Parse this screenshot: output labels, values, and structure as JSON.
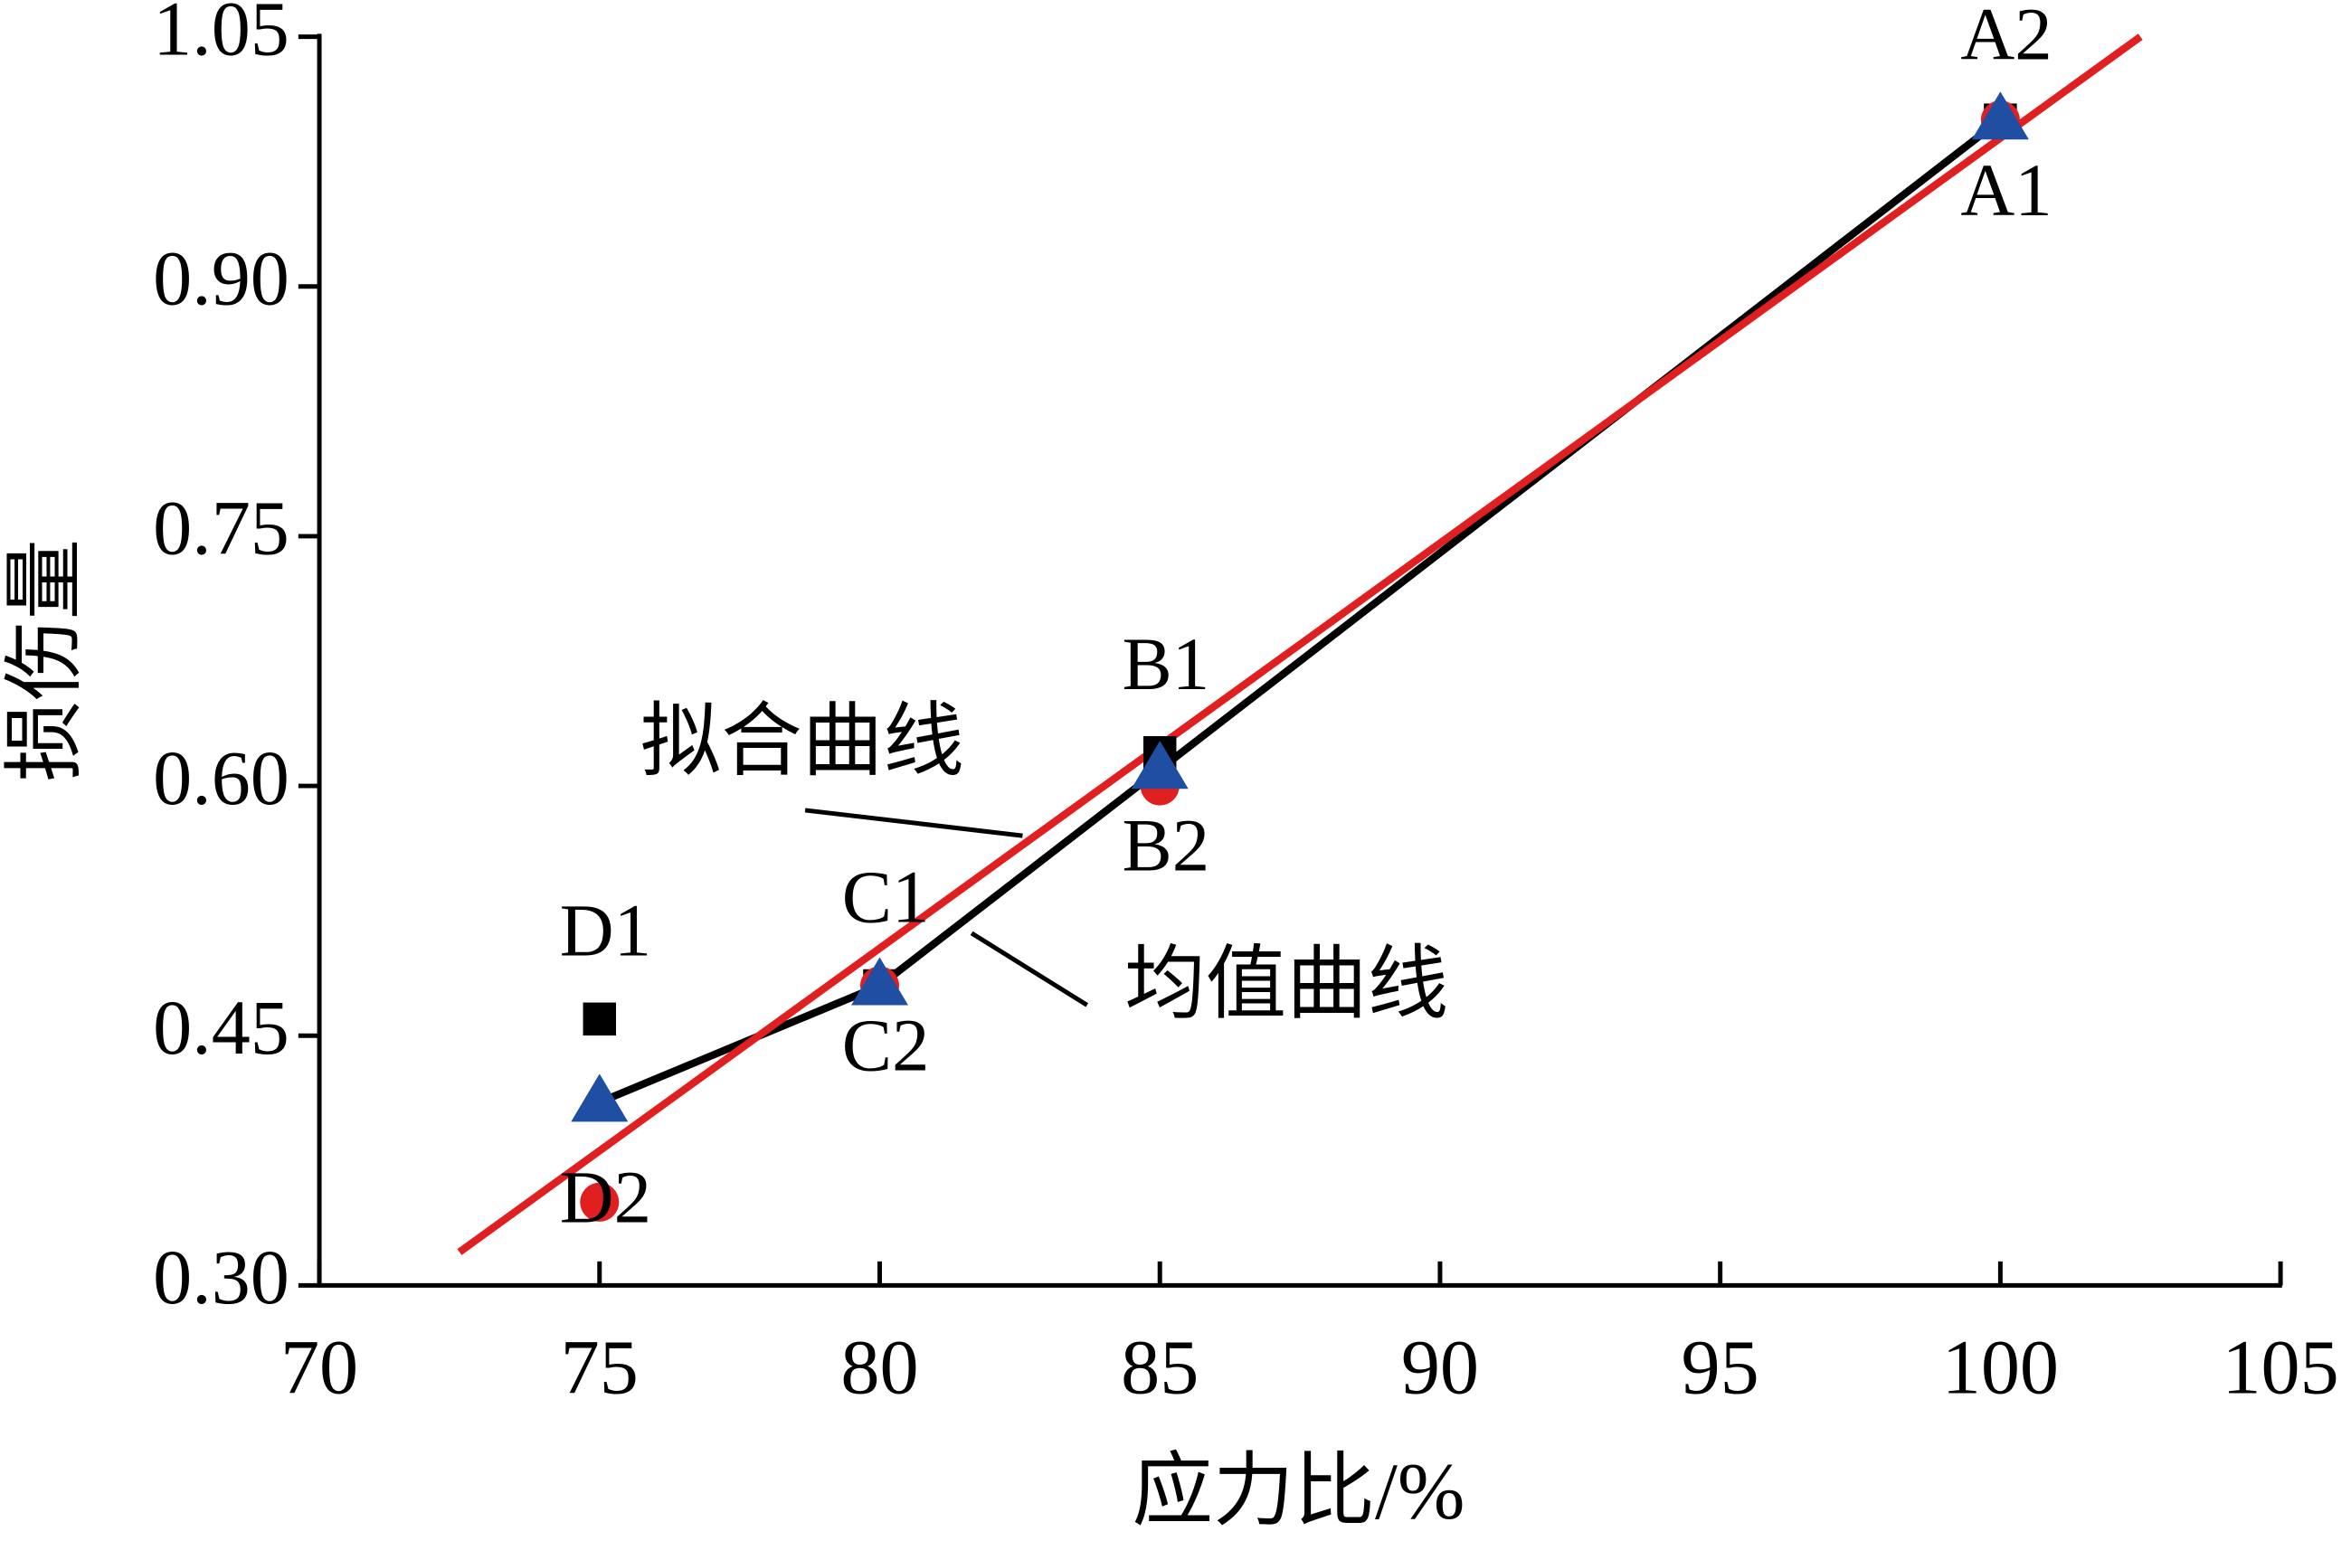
{
  "chart_data": {
    "type": "scatter",
    "x_label": "应力比/%",
    "y_label": "损伤量",
    "xlim": [
      70,
      105
    ],
    "xticks": [
      70,
      75,
      80,
      85,
      90,
      95,
      100,
      105
    ],
    "ylim": [
      0.3,
      1.05
    ],
    "yticks": [
      {
        "value": 0.3,
        "label": "0.30"
      },
      0.45,
      {
        "value": 0.6,
        "label": "0.60"
      },
      0.75,
      {
        "value": 0.9,
        "label": "0.90"
      },
      1.05
    ],
    "x": [
      75,
      80,
      85,
      100
    ],
    "series": [
      {
        "marker": "square",
        "color": "#000000",
        "values": [
          0.46,
          0.48,
          0.62,
          1.0
        ],
        "labels": [
          "D1",
          "C1",
          "B1",
          "A1"
        ]
      },
      {
        "marker": "circle",
        "color": "#e02020",
        "values": [
          0.35,
          0.48,
          0.6,
          1.0
        ],
        "labels": [
          "D2",
          "C2",
          "B2",
          "A2"
        ]
      },
      {
        "name": "均值曲线",
        "marker": "triangle",
        "line": true,
        "color": "#1f4ea3",
        "line_color": "#000000",
        "values": [
          0.41,
          0.48,
          0.61,
          1.0
        ]
      },
      {
        "name": "拟合曲线",
        "marker": "none",
        "line": true,
        "color": "#e02020",
        "x": [
          72.5,
          102.5
        ],
        "values": [
          0.32,
          1.05
        ]
      }
    ]
  }
}
